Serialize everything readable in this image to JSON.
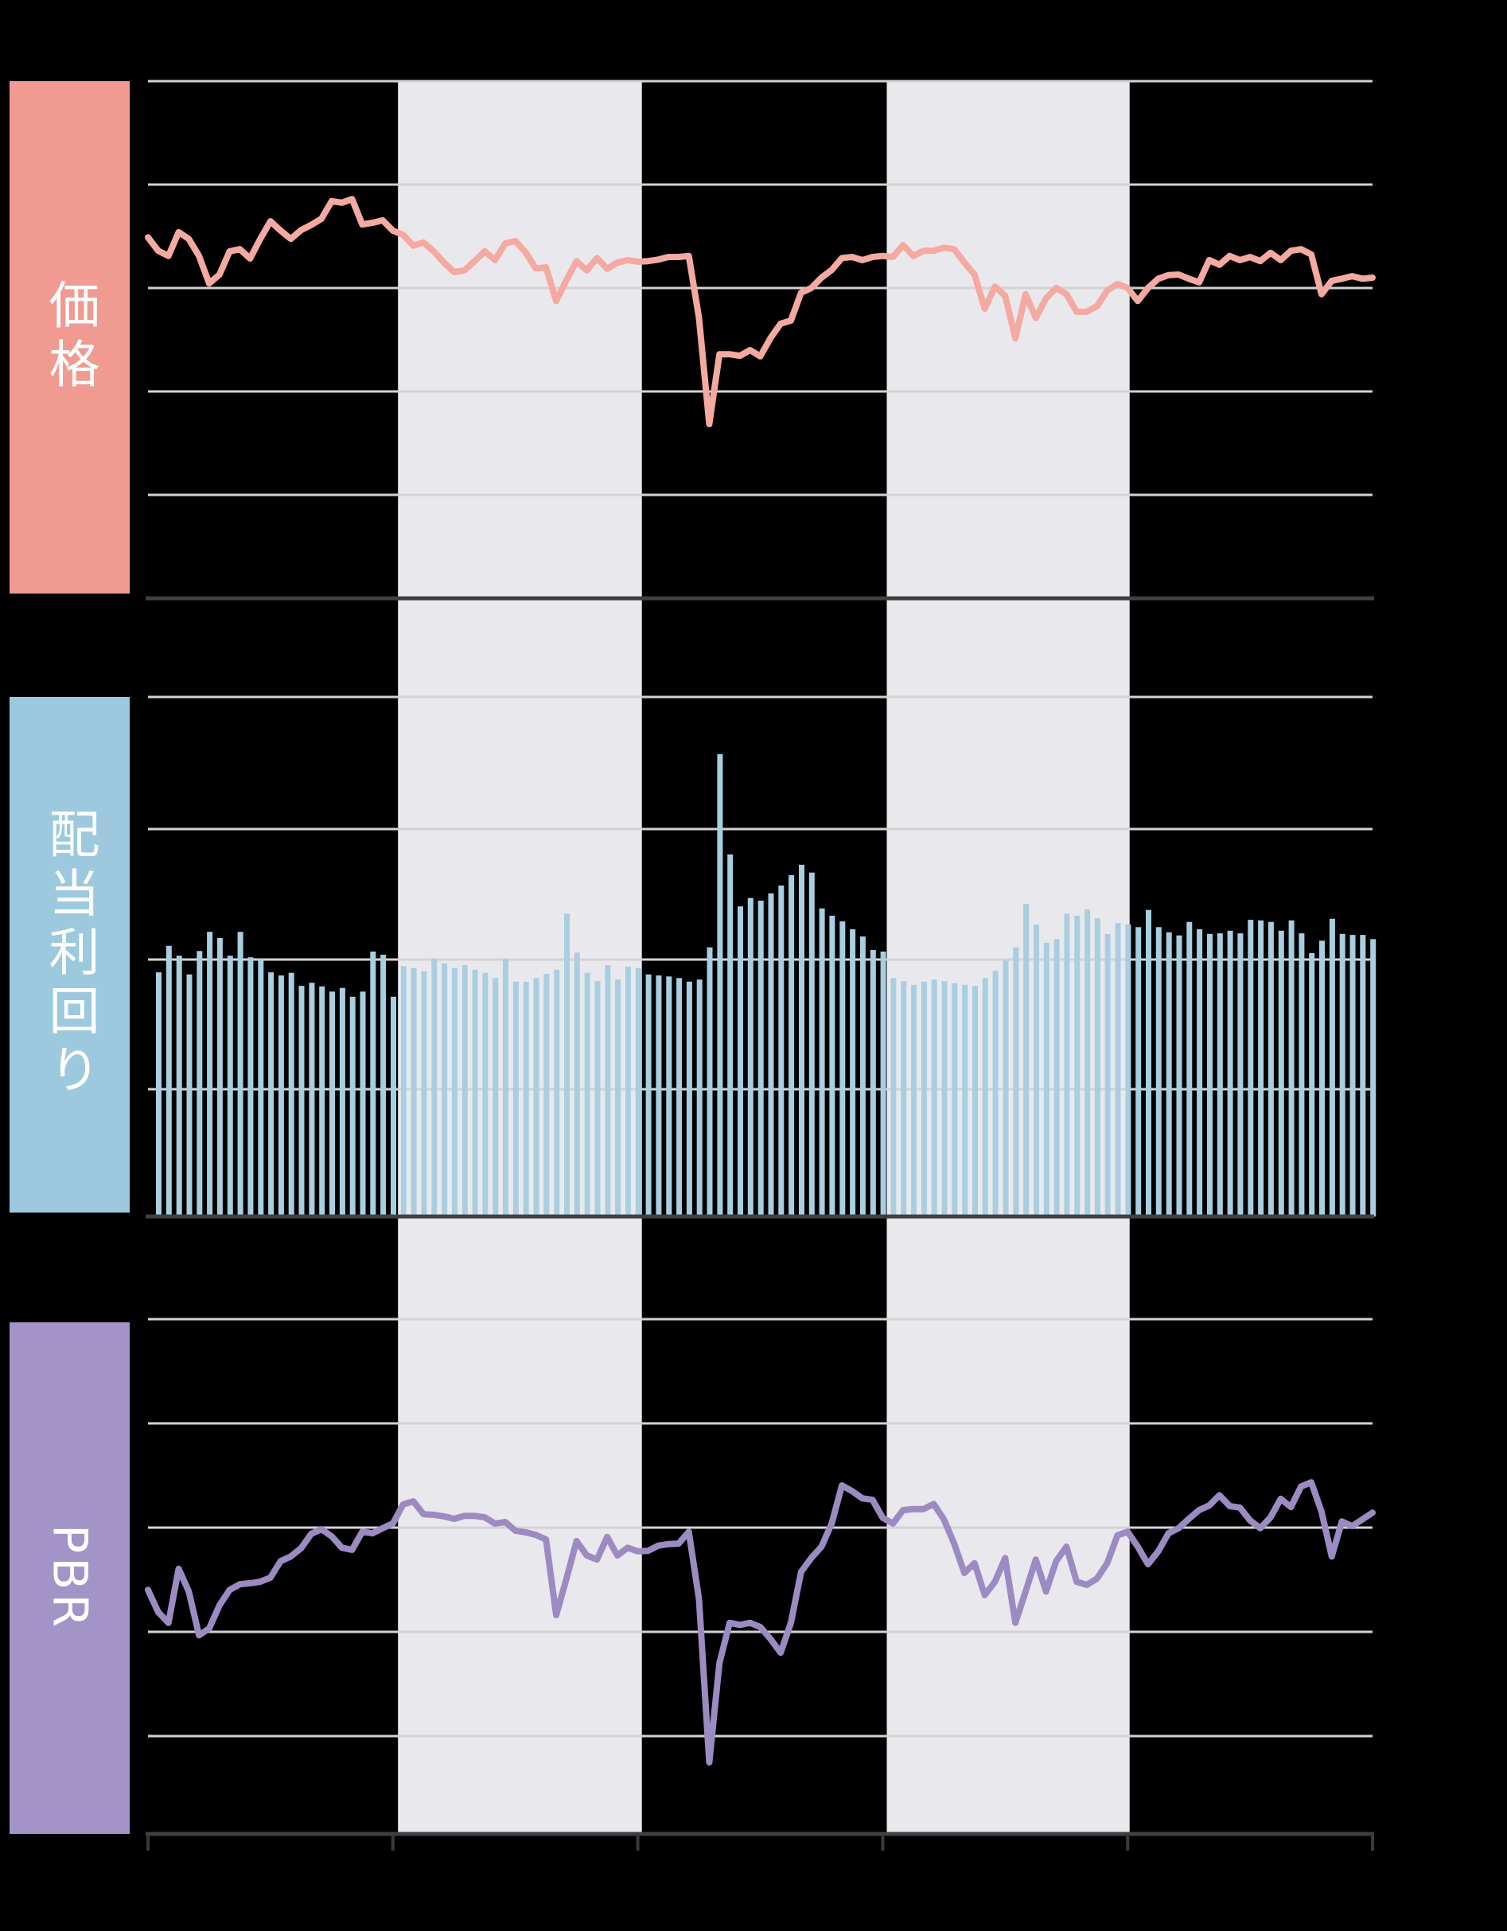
{
  "colors": {
    "background": "#000000",
    "shade_band": "#E9E9ED",
    "gridline": "#D3D3D3",
    "axis_dark": "#404040",
    "tick": "#3A3A3A",
    "label_text": "#FFFFFF"
  },
  "panels": [
    {
      "id": "price",
      "label": "価格",
      "band_color": "#F09A92",
      "series_color": "#F4A9A1",
      "type": "line"
    },
    {
      "id": "dividend-yield",
      "label": "配当利回り",
      "band_color": "#9CC9DD",
      "series_color": "#A8CEE1",
      "type": "bar"
    },
    {
      "id": "pbr",
      "label": "PBR",
      "band_color": "#A394C8",
      "series_color": "#9C8AC3",
      "type": "line"
    }
  ],
  "shaded_periods": [
    {
      "from_month": 24.5,
      "to_month": 48.4
    },
    {
      "from_month": 72.4,
      "to_month": 96.2
    }
  ],
  "x_axis": {
    "unit": "month_index",
    "range": [
      0,
      120
    ],
    "ticks": [
      0,
      24,
      48,
      72,
      96,
      120
    ],
    "tick_labels_visible": false
  },
  "chart_data": [
    {
      "type": "line",
      "title": "価格",
      "ylabel": "",
      "y_scale_note": "unlabeled axis; values normalized 0-100 of panel height, gridlines every 20",
      "ylim": [
        0,
        100
      ],
      "values": [
        69.8,
        67.2,
        66.2,
        70.8,
        69.5,
        66.2,
        60.9,
        62.6,
        67.1,
        67.5,
        65.7,
        69.5,
        72.9,
        71.1,
        69.5,
        71.2,
        72.2,
        73.4,
        76.8,
        76.5,
        77.2,
        72.3,
        72.6,
        73.1,
        71.1,
        70.3,
        68.2,
        68.8,
        67.1,
        64.9,
        63.1,
        63.4,
        65.2,
        67.1,
        65.4,
        68.6,
        69.1,
        66.9,
        63.8,
        64.0,
        57.5,
        61.5,
        65.2,
        63.4,
        65.8,
        63.7,
        64.9,
        65.4,
        65.1,
        65.2,
        65.5,
        66.0,
        66.0,
        66.2,
        54.2,
        33.7,
        47.2,
        47.2,
        46.9,
        48.0,
        46.8,
        50.3,
        53.1,
        53.7,
        59.1,
        60.0,
        62.0,
        63.5,
        65.8,
        66.0,
        65.4,
        66.0,
        66.2,
        66.0,
        68.3,
        66.2,
        67.2,
        67.2,
        67.8,
        67.5,
        64.9,
        62.6,
        56.0,
        60.3,
        58.5,
        50.3,
        58.8,
        54.2,
        58.0,
        60.0,
        58.8,
        55.4,
        55.4,
        56.5,
        59.5,
        60.8,
        60.0,
        57.5,
        60.0,
        61.8,
        62.5,
        62.6,
        61.8,
        61.1,
        65.4,
        64.5,
        66.2,
        65.4,
        66.0,
        65.2,
        66.8,
        65.4,
        67.2,
        67.5,
        66.5,
        58.8,
        61.4,
        61.8,
        62.3,
        61.8,
        62.0
      ]
    },
    {
      "type": "bar",
      "title": "配当利回り",
      "ylabel": "",
      "y_scale_note": "unlabeled axis; values normalized 0-100 of panel height, gridlines every 25",
      "ylim": [
        0,
        100
      ],
      "values": [
        47.0,
        52.1,
        50.2,
        46.6,
        51.1,
        54.8,
        53.6,
        50.2,
        54.8,
        49.9,
        49.5,
        47.0,
        46.4,
        46.9,
        44.4,
        45.0,
        44.3,
        43.3,
        44.0,
        42.3,
        43.3,
        51.0,
        50.4,
        42.3,
        48.2,
        47.8,
        47.2,
        49.6,
        48.7,
        47.8,
        48.4,
        47.5,
        46.9,
        45.9,
        49.6,
        45.2,
        45.2,
        45.9,
        46.7,
        47.5,
        58.3,
        50.8,
        46.9,
        45.3,
        48.4,
        45.6,
        48.1,
        47.8,
        46.6,
        46.4,
        46.2,
        45.9,
        45.2,
        45.6,
        51.8,
        89.0,
        69.7,
        59.7,
        61.3,
        60.8,
        62.2,
        63.7,
        65.7,
        67.7,
        66.2,
        59.3,
        57.9,
        56.8,
        55.3,
        53.9,
        51.3,
        51.0,
        45.9,
        45.3,
        44.6,
        45.2,
        45.6,
        45.3,
        44.9,
        44.6,
        44.4,
        45.9,
        47.3,
        49.3,
        51.8,
        60.2,
        56.2,
        52.7,
        53.4,
        58.3,
        57.9,
        59.1,
        57.4,
        54.4,
        56.5,
        56.2,
        55.7,
        59.0,
        55.7,
        54.7,
        54.1,
        56.7,
        55.3,
        54.4,
        54.5,
        55.0,
        54.5,
        57.1,
        57.0,
        56.7,
        55.0,
        57.0,
        54.5,
        50.7,
        53.1,
        57.3,
        54.4,
        54.2,
        54.2,
        53.4
      ]
    },
    {
      "type": "line",
      "title": "PBR",
      "ylabel": "",
      "y_scale_note": "unlabeled axis; values normalized 0-100 of panel height, gridlines every 20",
      "ylim": [
        0,
        100
      ],
      "values": [
        47.4,
        43.1,
        41.0,
        51.5,
        47.1,
        38.6,
        39.9,
        44.4,
        47.4,
        48.5,
        48.7,
        49.0,
        49.8,
        53.0,
        53.9,
        55.5,
        58.3,
        59.2,
        57.8,
        55.6,
        55.2,
        58.7,
        58.4,
        59.4,
        60.3,
        64.0,
        64.6,
        62.1,
        62.0,
        61.7,
        61.2,
        61.8,
        61.8,
        61.5,
        60.3,
        60.6,
        58.9,
        58.6,
        58.1,
        57.2,
        42.5,
        49.5,
        56.9,
        54.1,
        53.3,
        57.7,
        54.1,
        55.6,
        54.9,
        55.0,
        56.0,
        56.3,
        56.4,
        58.7,
        45.6,
        13.9,
        33.2,
        41.0,
        40.6,
        41.0,
        40.2,
        37.9,
        35.2,
        41.0,
        50.9,
        53.6,
        55.8,
        60.3,
        67.7,
        66.6,
        65.2,
        64.9,
        61.4,
        60.3,
        62.9,
        63.1,
        63.1,
        64.1,
        61.1,
        56.4,
        50.7,
        52.6,
        46.4,
        49.0,
        53.6,
        41.0,
        47.1,
        53.3,
        47.1,
        53.0,
        55.8,
        49.0,
        48.4,
        49.6,
        52.6,
        58.0,
        58.7,
        55.8,
        52.4,
        54.9,
        58.4,
        59.4,
        61.2,
        62.9,
        63.8,
        65.8,
        63.7,
        63.4,
        60.9,
        59.4,
        61.5,
        65.1,
        63.5,
        67.5,
        68.3,
        62.6,
        53.9,
        60.7,
        59.8,
        61.1,
        62.4
      ]
    }
  ]
}
